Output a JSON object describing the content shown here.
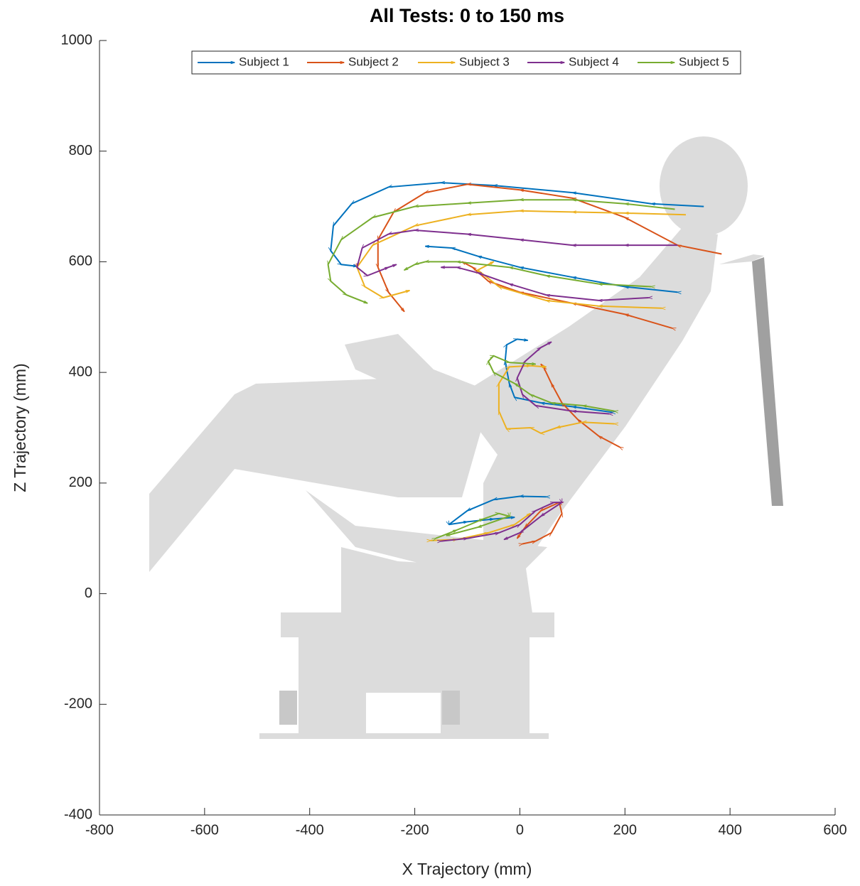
{
  "chart_data": {
    "type": "line",
    "title": "All Tests: 0 to 150 ms",
    "x_label": "X Trajectory (mm)",
    "y_label": "Z Trajectory (mm)",
    "xlim": [
      -800,
      600
    ],
    "xticks": [
      -800,
      -600,
      -400,
      -200,
      0,
      200,
      400,
      600
    ],
    "ylim": [
      -400,
      1000
    ],
    "yticks": [
      -400,
      -200,
      0,
      200,
      400,
      600,
      800,
      1000
    ],
    "legend": "top",
    "series": [
      {
        "name": "Subject 1",
        "color": "#0072bd",
        "x": [
          350,
          250,
          100,
          -50,
          -150,
          -250,
          -320,
          -355,
          -360,
          -340,
          -310,
          null,
          300,
          200,
          100,
          0,
          -80,
          -130,
          -180,
          null,
          175,
          100,
          40,
          -10,
          -20,
          -28,
          -25,
          -5,
          15,
          null,
          50,
          0,
          -50,
          -100,
          -135,
          -100,
          -50,
          -10
        ],
        "values": [
          700,
          705,
          725,
          738,
          743,
          735,
          705,
          665,
          620,
          595,
          592,
          null,
          545,
          555,
          572,
          590,
          610,
          625,
          628,
          null,
          328,
          338,
          345,
          355,
          380,
          420,
          450,
          460,
          458,
          null,
          175,
          176,
          170,
          150,
          125,
          130,
          135,
          138
        ]
      },
      {
        "name": "Subject 2",
        "color": "#d95319",
        "x": [
          384,
          300,
          200,
          100,
          0,
          -100,
          -180,
          -240,
          -270,
          -270,
          -250,
          -220,
          null,
          290,
          200,
          100,
          0,
          -60,
          -90,
          -110,
          null,
          190,
          150,
          110,
          80,
          60,
          45,
          40,
          null,
          5,
          30,
          60,
          80,
          75,
          40,
          10,
          -5
        ],
        "values": [
          614,
          630,
          680,
          715,
          730,
          740,
          725,
          690,
          640,
          590,
          545,
          510,
          null,
          480,
          505,
          525,
          545,
          565,
          590,
          600,
          null,
          265,
          285,
          315,
          345,
          380,
          410,
          415,
          null,
          90,
          95,
          110,
          145,
          165,
          150,
          120,
          100
        ]
      },
      {
        "name": "Subject 3",
        "color": "#edb120",
        "x": [
          316,
          200,
          100,
          0,
          -100,
          -200,
          -280,
          -310,
          -295,
          -260,
          -210,
          null,
          270,
          150,
          50,
          -40,
          -80,
          -50,
          null,
          180,
          120,
          70,
          40,
          20,
          -25,
          -40,
          -40,
          -20,
          20,
          50,
          null,
          -170,
          -120,
          -60,
          -10,
          20
        ],
        "values": [
          685,
          688,
          690,
          692,
          685,
          665,
          630,
          590,
          555,
          535,
          548,
          null,
          516,
          520,
          530,
          555,
          585,
          600,
          null,
          307,
          310,
          300,
          290,
          300,
          298,
          330,
          380,
          410,
          412,
          410,
          null,
          96,
          98,
          110,
          125,
          145
        ]
      },
      {
        "name": "Subject 4",
        "color": "#7e2f8e",
        "x": [
          300,
          200,
          100,
          0,
          -100,
          -200,
          -250,
          -300,
          -310,
          -290,
          -250,
          -235,
          null,
          245,
          150,
          50,
          -20,
          -80,
          -120,
          -150,
          null,
          170,
          100,
          30,
          5,
          -5,
          10,
          40,
          60,
          null,
          -150,
          -100,
          -40,
          0,
          30,
          65,
          80,
          40,
          0,
          -30
        ],
        "values": [
          630,
          630,
          630,
          640,
          650,
          657,
          650,
          625,
          590,
          575,
          590,
          595,
          null,
          535,
          530,
          540,
          560,
          580,
          590,
          590,
          null,
          325,
          330,
          340,
          360,
          390,
          420,
          445,
          455,
          null,
          95,
          100,
          110,
          125,
          150,
          165,
          165,
          140,
          110,
          98
        ]
      },
      {
        "name": "Subject 5",
        "color": "#77ac30",
        "x": [
          295,
          200,
          100,
          0,
          -100,
          -200,
          -280,
          -340,
          -365,
          -360,
          -330,
          -290,
          null,
          250,
          150,
          50,
          -20,
          -120,
          -180,
          -200,
          -220,
          null,
          180,
          120,
          60,
          20,
          -10,
          -50,
          -60,
          -50,
          -20,
          30,
          null,
          -160,
          -120,
          -70,
          -40,
          -20,
          -80,
          -140
        ],
        "values": [
          695,
          705,
          712,
          712,
          706,
          700,
          680,
          640,
          595,
          565,
          540,
          525,
          null,
          555,
          560,
          575,
          590,
          600,
          600,
          595,
          585,
          null,
          330,
          340,
          345,
          360,
          380,
          400,
          420,
          430,
          418,
          415,
          null,
          100,
          115,
          135,
          145,
          140,
          120,
          105
        ]
      }
    ]
  }
}
